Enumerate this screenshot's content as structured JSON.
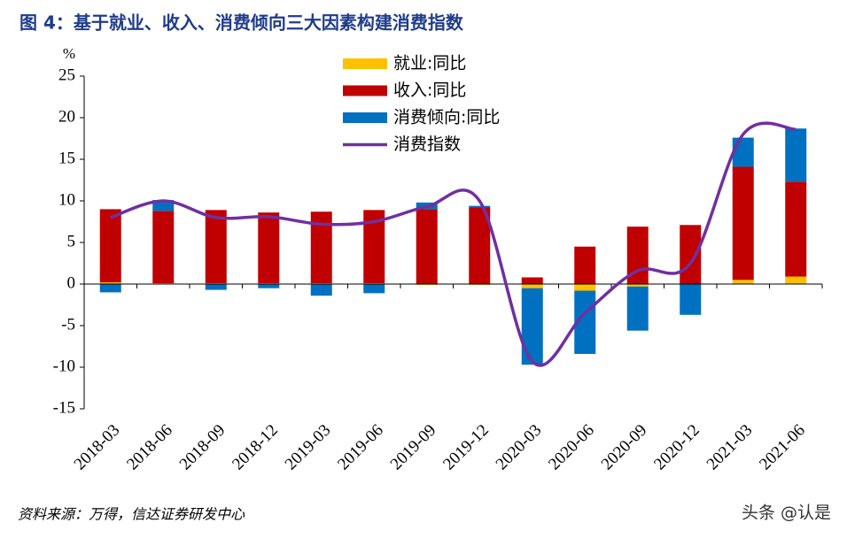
{
  "chart_data": {
    "type": "bar-line",
    "title": "图 4：基于就业、收入、消费倾向三大因素构建消费指数",
    "unit": "%",
    "categories": [
      "2018-03",
      "2018-06",
      "2018-09",
      "2018-12",
      "2019-03",
      "2019-06",
      "2019-09",
      "2019-12",
      "2020-03",
      "2020-06",
      "2020-09",
      "2020-12",
      "2021-03",
      "2021-06"
    ],
    "series": [
      {
        "name": "就业:同比",
        "type": "bar",
        "color": "#FFC000",
        "values": [
          0.2,
          0.1,
          0.1,
          0.1,
          0.1,
          0.1,
          -0.1,
          -0.1,
          -0.5,
          -0.8,
          -0.3,
          0.0,
          0.5,
          0.9
        ]
      },
      {
        "name": "收入:同比",
        "type": "bar",
        "color": "#C00000",
        "values": [
          8.8,
          8.7,
          8.8,
          8.5,
          8.6,
          8.8,
          9.0,
          9.2,
          0.8,
          4.5,
          6.9,
          7.1,
          13.6,
          11.4
        ]
      },
      {
        "name": "消费倾向:同比",
        "type": "bar",
        "color": "#0070C0",
        "values": [
          -1.0,
          1.3,
          -0.7,
          -0.5,
          -1.4,
          -1.1,
          0.8,
          0.2,
          -9.2,
          -7.6,
          -5.3,
          -3.7,
          3.5,
          6.4
        ]
      },
      {
        "name": "消费指数",
        "type": "line",
        "color": "#7030A0",
        "values": [
          8.0,
          10.0,
          8.0,
          8.1,
          7.2,
          7.5,
          9.3,
          10.0,
          -9.3,
          -3.5,
          1.6,
          2.5,
          18.0,
          18.6
        ]
      }
    ],
    "ylim": [
      -15,
      25
    ],
    "yticks": [
      -15,
      -10,
      -5,
      0,
      5,
      10,
      15,
      20,
      25
    ],
    "source": "资料来源：万得，信达证券研发中心",
    "watermark": "头条 @认是"
  }
}
